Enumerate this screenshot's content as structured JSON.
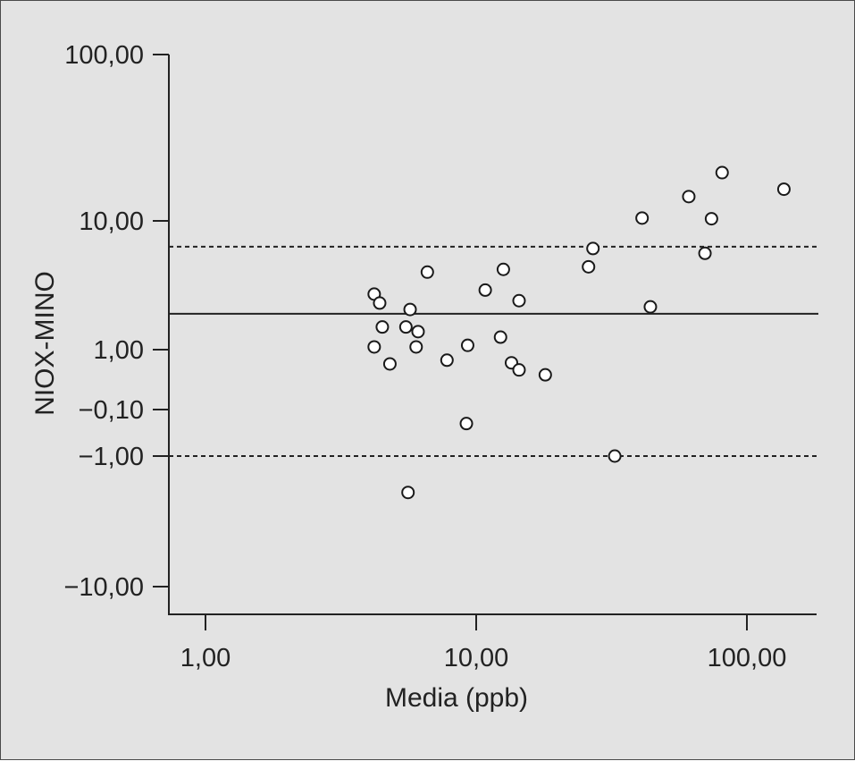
{
  "chart_data": {
    "type": "scatter",
    "xlabel": "Media (ppb)",
    "ylabel": "NIOX-MINO",
    "x_scale": "log",
    "y_scale": "custom-symmetric-log",
    "xlim": [
      0.8,
      160
    ],
    "x_ticks": [
      {
        "value": 1,
        "label": "1,00"
      },
      {
        "value": 10,
        "label": "10,00"
      },
      {
        "value": 100,
        "label": "100,00"
      }
    ],
    "y_ticks": [
      {
        "value": 100,
        "label": "100,00"
      },
      {
        "value": 10,
        "label": "10,00"
      },
      {
        "value": 1,
        "label": "1,00"
      },
      {
        "value": -0.1,
        "label": "−0,10"
      },
      {
        "value": -1,
        "label": "−1,00"
      },
      {
        "value": -10,
        "label": "−10,00"
      }
    ],
    "reference_lines": [
      {
        "kind": "upper-limit",
        "style": "dashed",
        "y": 6.3
      },
      {
        "kind": "mean",
        "style": "solid",
        "y": 1.9
      },
      {
        "kind": "lower-limit",
        "style": "dashed",
        "y": -1.0
      }
    ],
    "points": [
      {
        "x": 4.2,
        "y": 2.7
      },
      {
        "x": 4.4,
        "y": 2.3
      },
      {
        "x": 4.5,
        "y": 1.5
      },
      {
        "x": 4.8,
        "y": 0.62
      },
      {
        "x": 4.2,
        "y": 1.05
      },
      {
        "x": 5.5,
        "y": 1.5
      },
      {
        "x": 5.7,
        "y": 2.05
      },
      {
        "x": 6.0,
        "y": 1.05
      },
      {
        "x": 6.1,
        "y": 1.38
      },
      {
        "x": 6.6,
        "y": 4.0
      },
      {
        "x": 5.6,
        "y": -1.9
      },
      {
        "x": 7.8,
        "y": 0.72
      },
      {
        "x": 9.3,
        "y": 1.08
      },
      {
        "x": 9.2,
        "y": -0.2
      },
      {
        "x": 10.8,
        "y": 2.9
      },
      {
        "x": 12.3,
        "y": 1.25
      },
      {
        "x": 12.6,
        "y": 4.2
      },
      {
        "x": 13.5,
        "y": 0.65
      },
      {
        "x": 14.4,
        "y": 0.46
      },
      {
        "x": 14.4,
        "y": 2.4
      },
      {
        "x": 18.0,
        "y": 0.33
      },
      {
        "x": 26.0,
        "y": 4.4
      },
      {
        "x": 27.0,
        "y": 6.1
      },
      {
        "x": 32.5,
        "y": -1.0
      },
      {
        "x": 41.0,
        "y": 10.4
      },
      {
        "x": 44.0,
        "y": 2.15
      },
      {
        "x": 61.0,
        "y": 14.0
      },
      {
        "x": 70.0,
        "y": 5.6
      },
      {
        "x": 74.0,
        "y": 10.3
      },
      {
        "x": 81.0,
        "y": 19.5
      },
      {
        "x": 137.0,
        "y": 15.5
      }
    ]
  }
}
